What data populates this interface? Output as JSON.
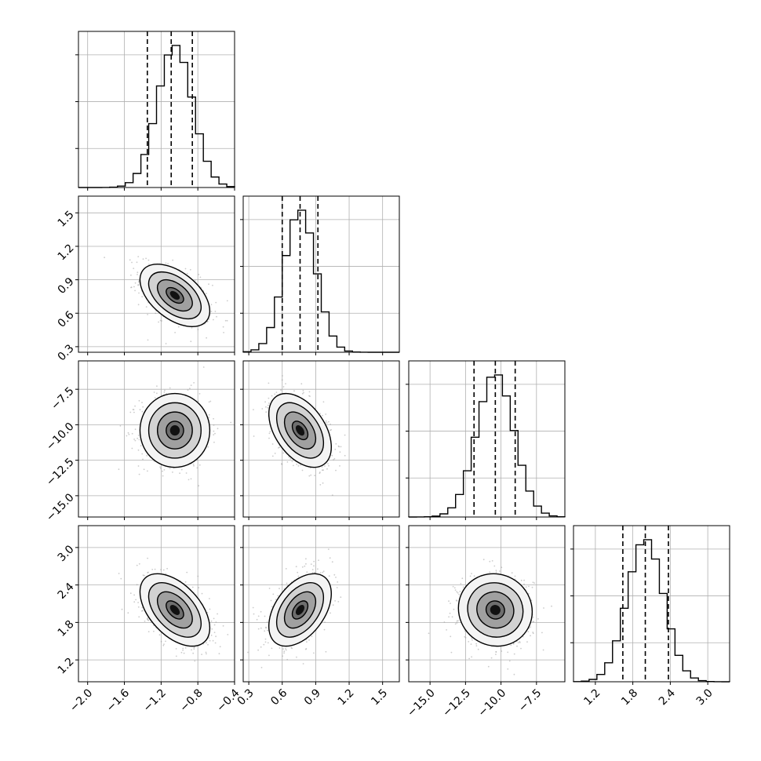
{
  "chart_data": {
    "type": "corner",
    "title": "",
    "grid": true,
    "params": [
      {
        "mean": -1.05,
        "std": 0.19,
        "quantiles": [
          -1.35,
          -1.09,
          -0.86
        ],
        "range": [
          -2.1,
          -0.4
        ],
        "ticks": [
          -2.0,
          -1.6,
          -1.2,
          -0.8,
          -0.4
        ],
        "tick_labels": [
          "−2.0",
          "−1.6",
          "−1.2",
          "−0.8",
          "−0.4"
        ]
      },
      {
        "mean": 0.76,
        "std": 0.14,
        "quantiles": [
          0.6,
          0.76,
          0.92
        ],
        "range": [
          0.25,
          1.65
        ],
        "ticks": [
          0.3,
          0.6,
          0.9,
          1.2,
          1.5
        ],
        "tick_labels": [
          "0.3",
          "0.6",
          "0.9",
          "1.2",
          "1.5"
        ]
      },
      {
        "mean": -10.4,
        "std": 1.3,
        "quantiles": [
          -11.9,
          -10.4,
          -9.0
        ],
        "range": [
          -16.5,
          -5.5
        ],
        "ticks": [
          -15.0,
          -12.5,
          -10.0,
          -7.5
        ],
        "tick_labels": [
          "−15.0",
          "−12.5",
          "−10.0",
          "−7.5"
        ]
      },
      {
        "mean": 2.0,
        "std": 0.29,
        "quantiles": [
          1.64,
          2.0,
          2.37
        ],
        "range": [
          0.85,
          3.35
        ],
        "ticks": [
          1.2,
          1.8,
          2.4,
          3.0
        ],
        "tick_labels": [
          "1.2",
          "1.8",
          "2.4",
          "3.0"
        ]
      }
    ],
    "correlations": [
      [
        1.0,
        -0.5,
        0.0,
        -0.5
      ],
      [
        -0.5,
        1.0,
        -0.45,
        0.45
      ],
      [
        0.0,
        -0.45,
        1.0,
        -0.05
      ],
      [
        -0.5,
        0.45,
        -0.05,
        1.0
      ]
    ],
    "contour_levels_sigma": [
      0.5,
      1.0,
      1.5,
      2.0
    ],
    "colors": {
      "hist": "#000000",
      "contour": "#000000",
      "points": "#9a9a9a",
      "grid": "#b0b0b0"
    }
  }
}
